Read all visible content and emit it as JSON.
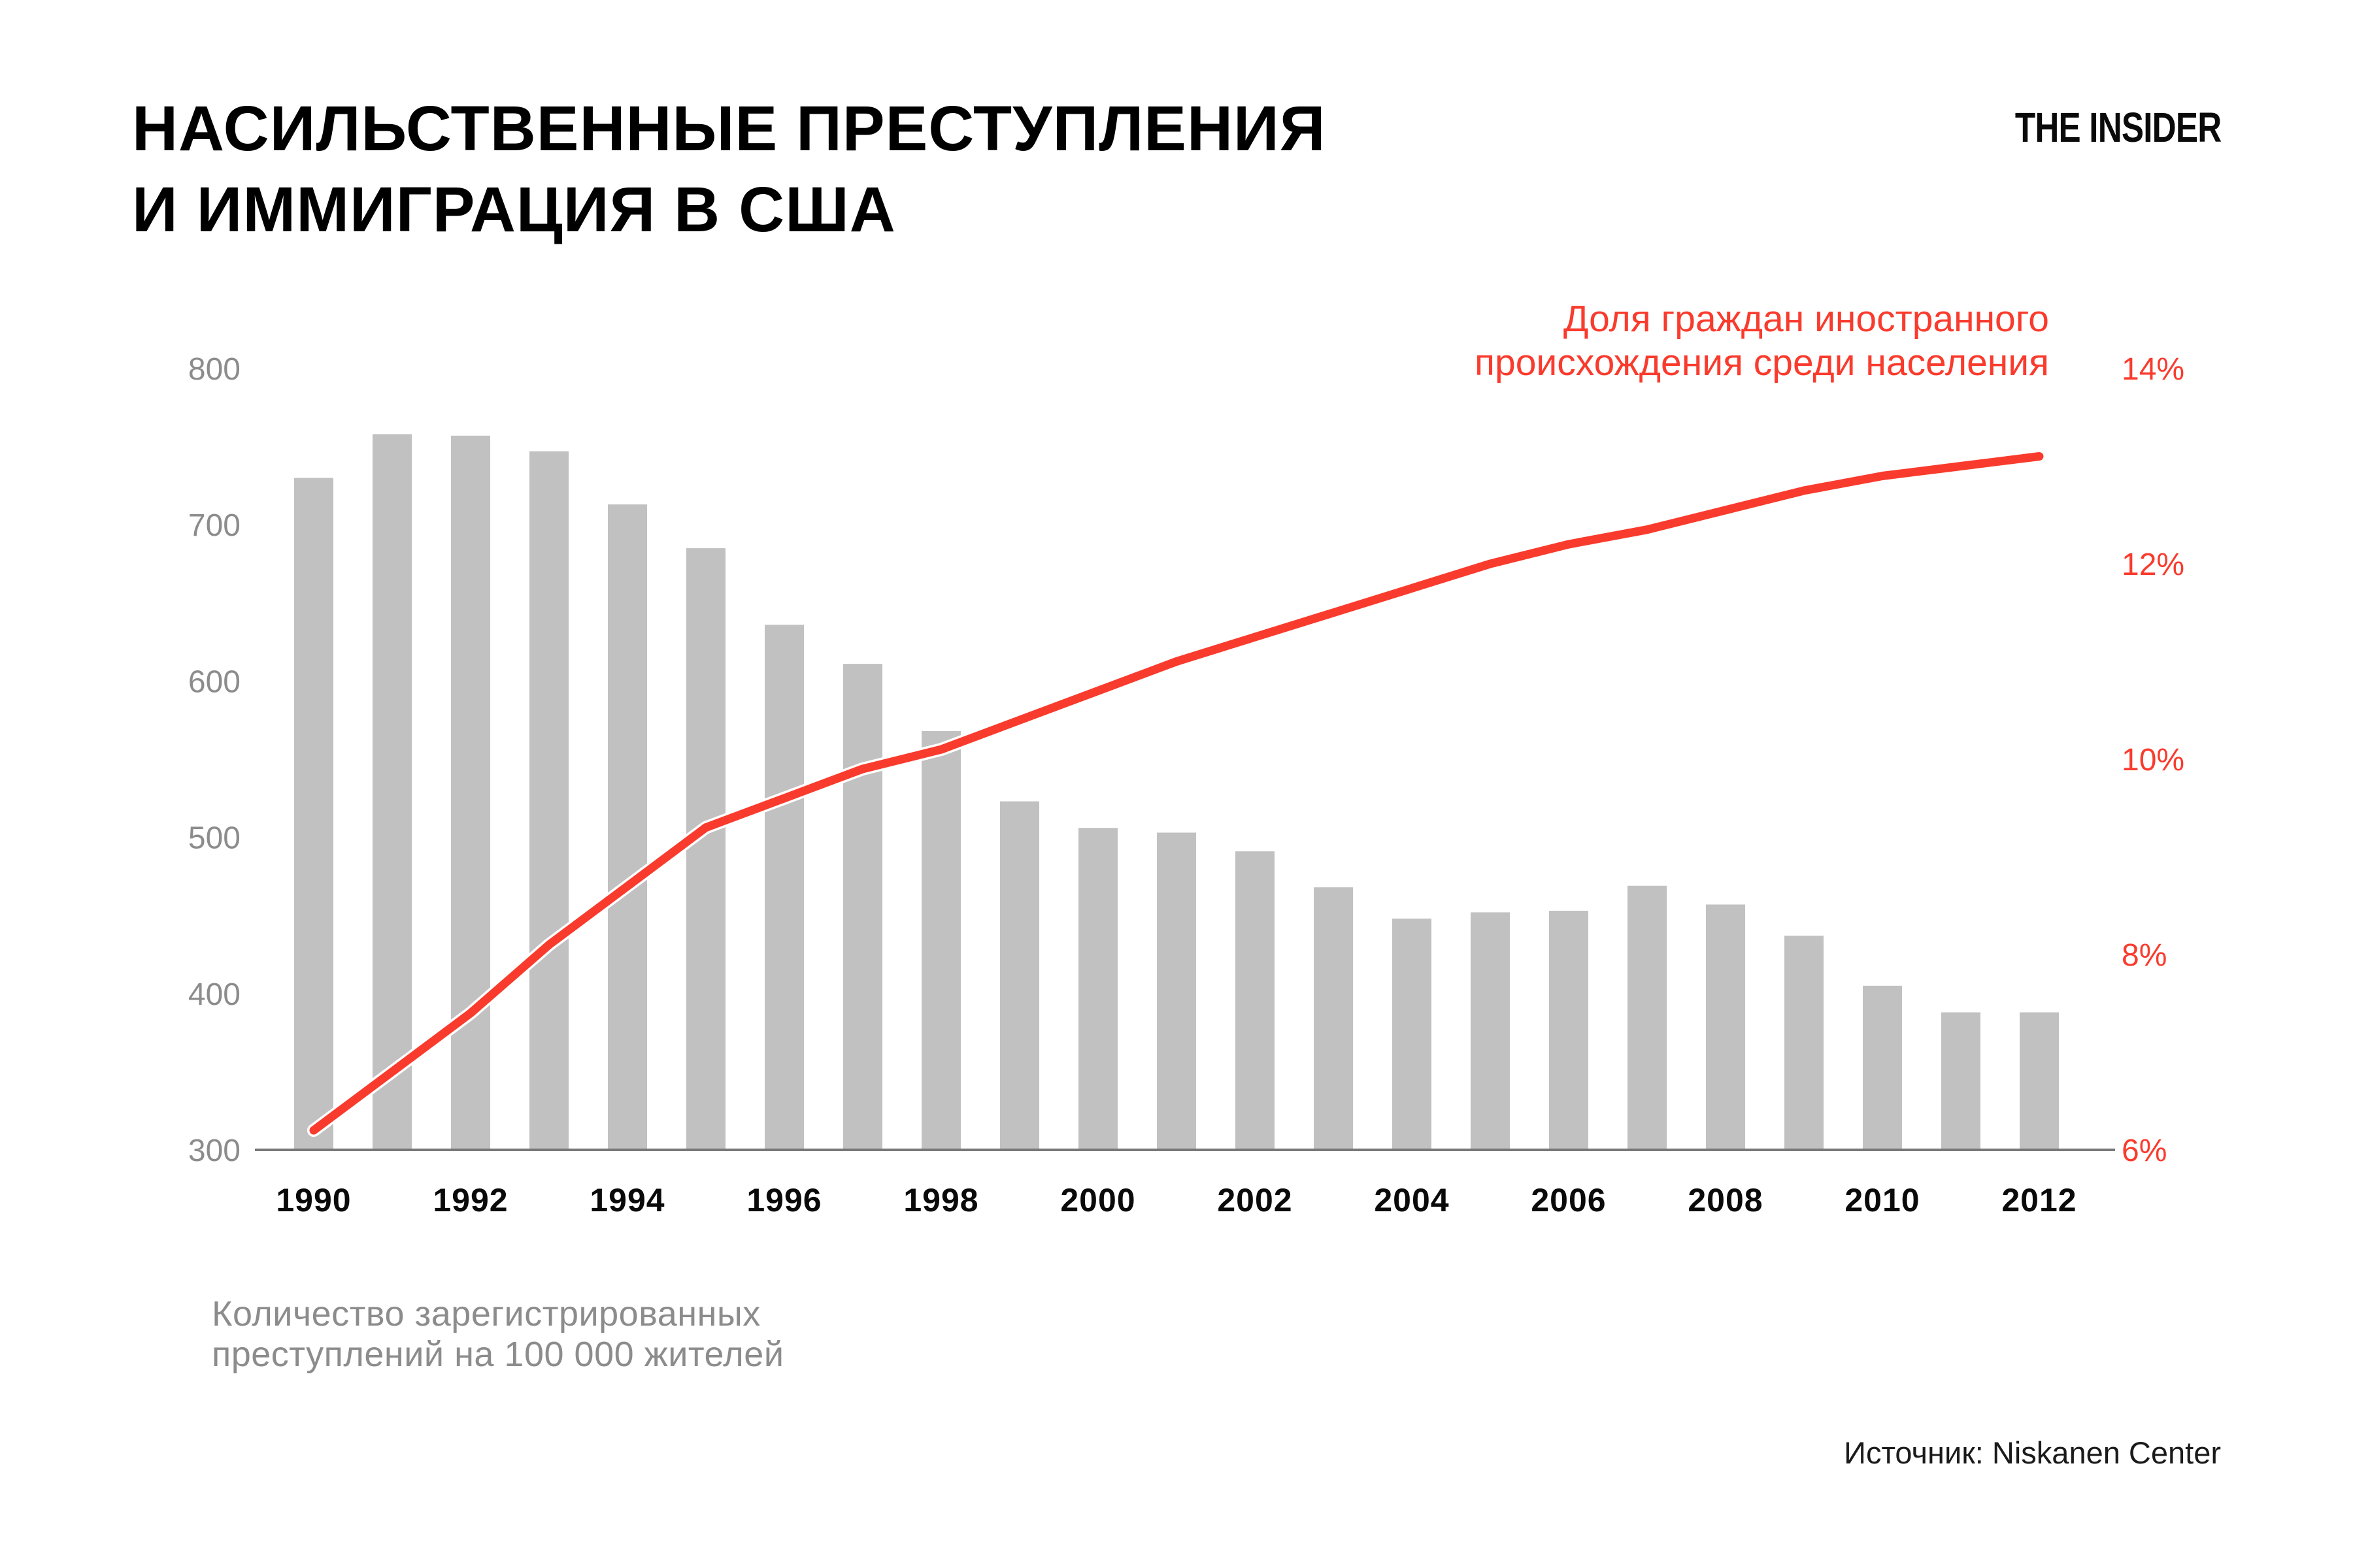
{
  "title": {
    "line1": "НАСИЛЬСТВЕННЫЕ ПРЕСТУПЛЕНИЯ",
    "line2": "И ИММИГРАЦИЯ В США"
  },
  "logo": {
    "text": "THE INSIDER"
  },
  "legend": {
    "line1": "Доля граждан иностранного",
    "line2": "происхождения среди населения"
  },
  "caption": {
    "line1": "Количество зарегистрированных",
    "line2": "преступлений на 100 000 жителей"
  },
  "source": "Источник: Niskanen Center",
  "colors": {
    "accent_red": "#f93b2d",
    "bar_gray": "#c1c1c1",
    "axis_label_gray": "#8c8c8c",
    "axis_line_gray": "#787878",
    "x_label_black": "#0a0a0a",
    "background": "#ffffff"
  },
  "chart_data": {
    "type": "bar+line",
    "title": "НАСИЛЬСТВЕННЫЕ ПРЕСТУПЛЕНИЯ И ИММИГРАЦИЯ В США",
    "categories": [
      1990,
      1991,
      1992,
      1993,
      1994,
      1995,
      1996,
      1997,
      1998,
      1999,
      2000,
      2001,
      2002,
      2003,
      2004,
      2005,
      2006,
      2007,
      2008,
      2009,
      2010,
      2011,
      2012
    ],
    "series": [
      {
        "name": "Количество зарегистрированных преступлений на 100 000 жителей",
        "kind": "bar",
        "axis": "left",
        "values": [
          730,
          758,
          757,
          747,
          713,
          685,
          636,
          611,
          568,
          523,
          506,
          503,
          491,
          468,
          448,
          452,
          453,
          469,
          457,
          437,
          405,
          388,
          388
        ]
      },
      {
        "name": "Доля граждан иностранного происхождения среди населения",
        "kind": "line",
        "axis": "right",
        "values": [
          6.2,
          6.8,
          7.4,
          8.1,
          8.7,
          9.3,
          9.6,
          9.9,
          10.1,
          10.4,
          10.7,
          11.0,
          11.25,
          11.5,
          11.75,
          12.0,
          12.2,
          12.35,
          12.55,
          12.75,
          12.9,
          13.0,
          13.1
        ]
      }
    ],
    "left_axis": {
      "ticks": [
        800,
        700,
        600,
        500,
        400,
        300
      ],
      "range": [
        300,
        800
      ]
    },
    "right_axis": {
      "tick_values": [
        14,
        12,
        10,
        8,
        6
      ],
      "tick_labels": [
        "14%",
        "12%",
        "10%",
        "8%",
        "6%"
      ],
      "range": [
        6,
        14
      ]
    },
    "x_axis": {
      "tick_years": [
        1990,
        1992,
        1994,
        1996,
        1998,
        2000,
        2002,
        2004,
        2006,
        2008,
        2010,
        2012
      ]
    },
    "grid": false,
    "legend_position": "top-right"
  }
}
